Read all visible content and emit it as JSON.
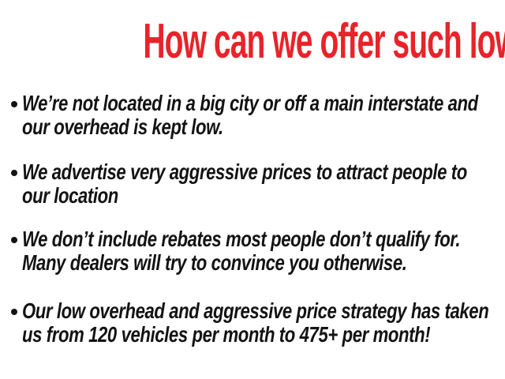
{
  "theme": {
    "accent_red": "#e8232a",
    "text_black": "#131313",
    "background": "#ffffff"
  },
  "title": {
    "text": "How can we offer such low prices?"
  },
  "bullets": [
    {
      "lines": [
        "We’re not located in a big city or off a main interstate and",
        "our overhead is kept low."
      ]
    },
    {
      "lines": [
        "We advertise very aggressive prices to attract people to",
        "our location"
      ]
    },
    {
      "lines": [
        "We don’t include rebates most people don’t qualify for.",
        "Many dealers will try to convince you otherwise."
      ]
    },
    {
      "lines": [
        "Our low overhead and aggressive price strategy has taken",
        "us from 120 vehicles per month to 475+ per month!"
      ]
    }
  ]
}
